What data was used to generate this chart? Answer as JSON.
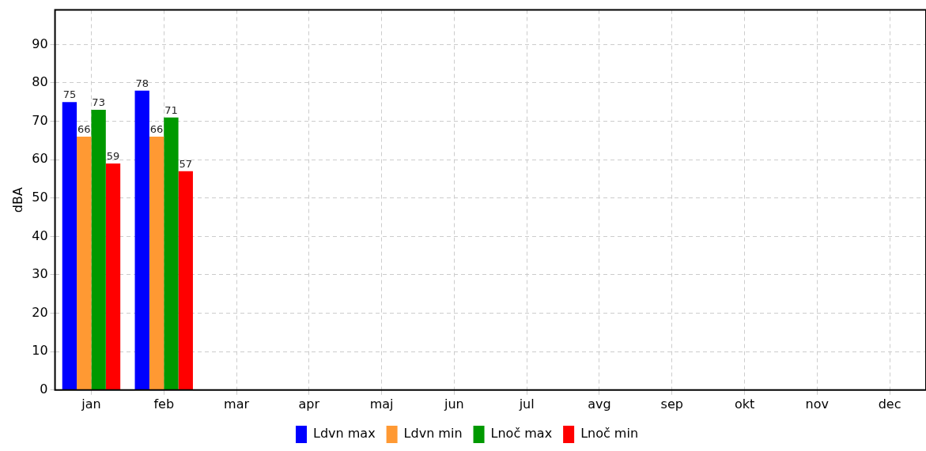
{
  "chart_data": {
    "type": "bar",
    "ylabel": "dBA",
    "categories": [
      "jan",
      "feb",
      "mar",
      "apr",
      "maj",
      "jun",
      "jul",
      "avg",
      "sep",
      "okt",
      "nov",
      "dec"
    ],
    "series": [
      {
        "name": "Ldvn max",
        "color": "#0000ff",
        "values": [
          75,
          78,
          null,
          null,
          null,
          null,
          null,
          null,
          null,
          null,
          null,
          null
        ]
      },
      {
        "name": "Ldvn min",
        "color": "#ff9933",
        "values": [
          66,
          66,
          null,
          null,
          null,
          null,
          null,
          null,
          null,
          null,
          null,
          null
        ]
      },
      {
        "name": "Lnoč max",
        "color": "#009900",
        "values": [
          73,
          71,
          null,
          null,
          null,
          null,
          null,
          null,
          null,
          null,
          null,
          null
        ]
      },
      {
        "name": "Lnoč min",
        "color": "#ff0000",
        "values": [
          59,
          57,
          null,
          null,
          null,
          null,
          null,
          null,
          null,
          null,
          null,
          null
        ]
      }
    ],
    "ylim": [
      0,
      99
    ],
    "yticks": [
      0,
      10,
      20,
      30,
      40,
      50,
      60,
      70,
      80,
      90
    ],
    "grid": true,
    "legend": "bottom",
    "data_labels": true
  }
}
